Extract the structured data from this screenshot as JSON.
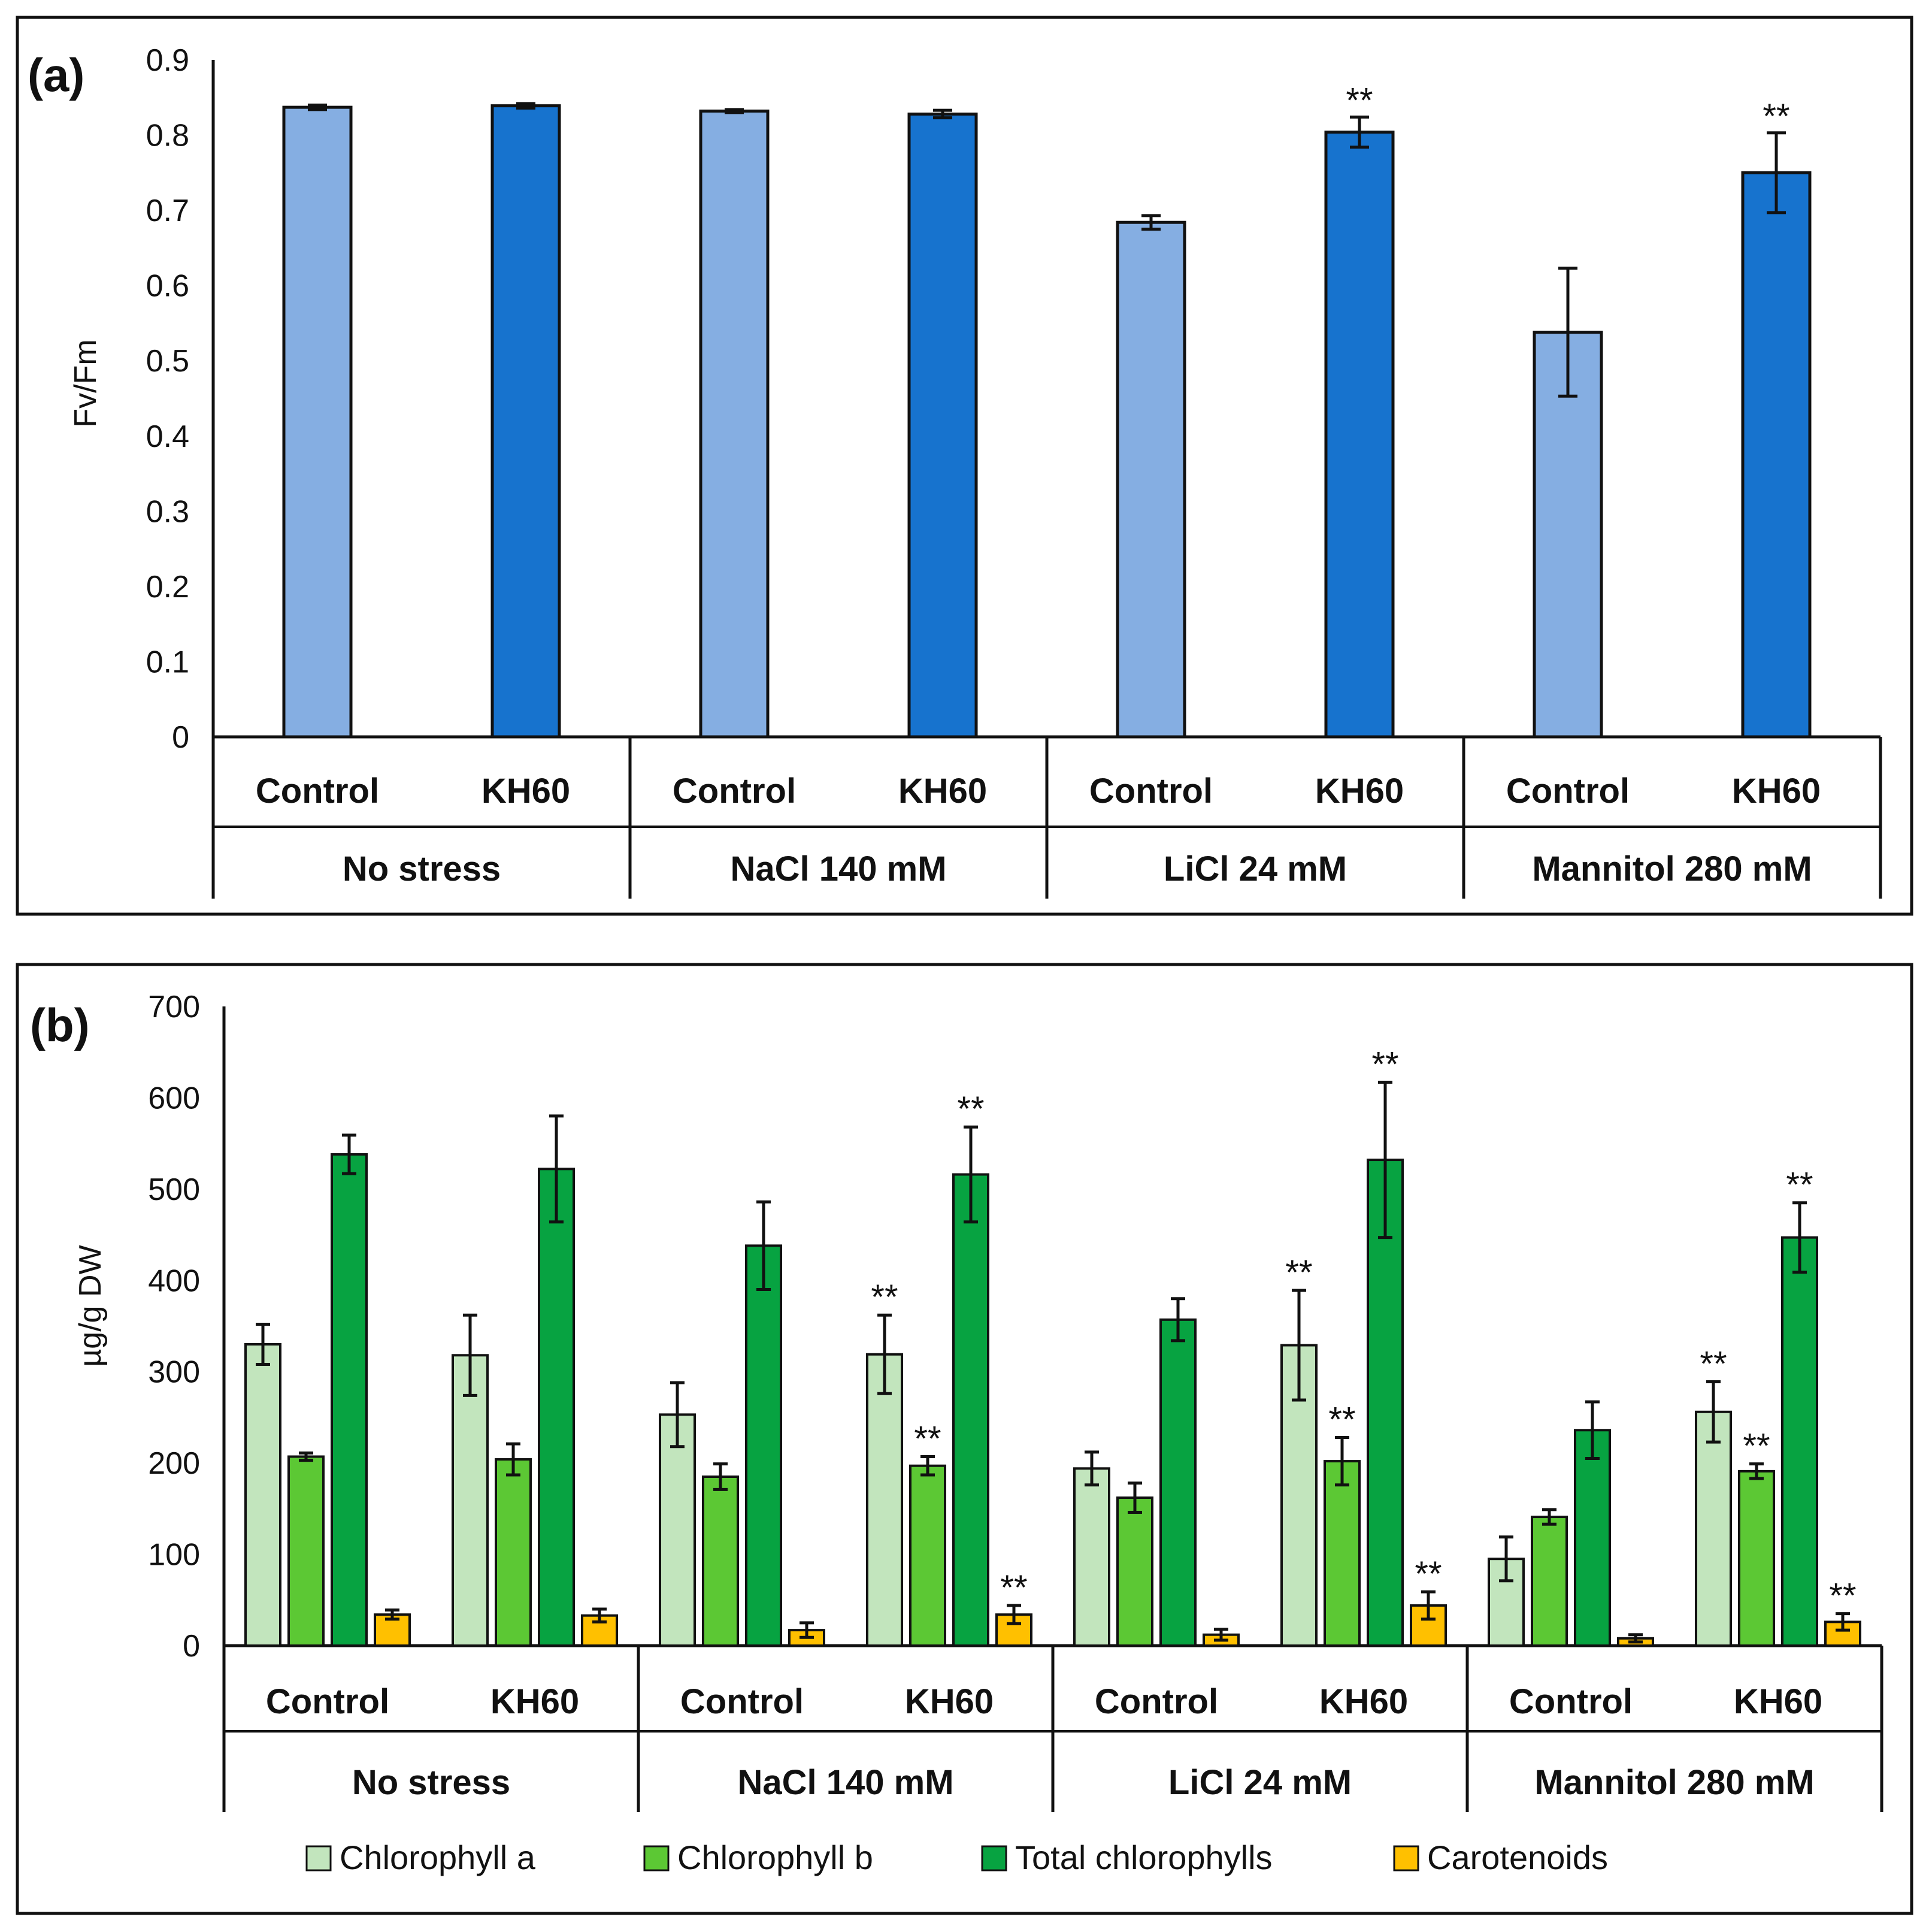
{
  "chart_data": [
    {
      "panel_label": "(a)",
      "type": "bar",
      "ylabel": "Fv/Fm",
      "ylim": [
        0,
        0.9
      ],
      "yticks": [
        "0",
        "0.1",
        "0.2",
        "0.3",
        "0.4",
        "0.5",
        "0.6",
        "0.7",
        "0.8",
        "0.9"
      ],
      "groups": [
        "No stress",
        "NaCl 140 mM",
        "LiCl 24 mM",
        "Mannitol 280 mM"
      ],
      "subcategories": [
        "Control",
        "KH60"
      ],
      "colors": {
        "Control": "#85AEE2",
        "KH60": "#1773CE"
      },
      "values": [
        [
          0.837,
          0.839
        ],
        [
          0.832,
          0.828
        ],
        [
          0.684,
          0.804
        ],
        [
          0.538,
          0.75
        ]
      ],
      "errors": [
        [
          0.003,
          0.003
        ],
        [
          0.002,
          0.005
        ],
        [
          0.009,
          0.02
        ],
        [
          0.085,
          0.053
        ]
      ],
      "significance": [
        [
          "",
          ""
        ],
        [
          "",
          ""
        ],
        [
          "",
          "**"
        ],
        [
          "",
          "**"
        ]
      ]
    },
    {
      "panel_label": "(b)",
      "type": "bar",
      "ylabel": "µg/g DW",
      "ylim": [
        0,
        700
      ],
      "yticks": [
        "0",
        "100",
        "200",
        "300",
        "400",
        "500",
        "600",
        "700"
      ],
      "groups": [
        "No stress",
        "NaCl 140 mM",
        "LiCl 24 mM",
        "Mannitol 280 mM"
      ],
      "subcategories": [
        "Control",
        "KH60"
      ],
      "series": [
        {
          "name": "Chlorophyll  a",
          "color": "#C2E5BD",
          "values": [
            [
              330,
              318
            ],
            [
              253,
              319
            ],
            [
              194,
              329
            ],
            [
              95,
              256
            ]
          ],
          "errors": [
            [
              22,
              44
            ],
            [
              35,
              43
            ],
            [
              18,
              60
            ],
            [
              24,
              33
            ]
          ],
          "significance": [
            [
              "",
              ""
            ],
            [
              "",
              "**"
            ],
            [
              "",
              "**"
            ],
            [
              "",
              "**"
            ]
          ]
        },
        {
          "name": "Chlorophyll  b",
          "color": "#5CC834",
          "values": [
            [
              207,
              204
            ],
            [
              185,
              197
            ],
            [
              162,
              202
            ],
            [
              141,
              191
            ]
          ],
          "errors": [
            [
              4,
              17
            ],
            [
              14,
              10
            ],
            [
              16,
              26
            ],
            [
              8,
              8
            ]
          ],
          "significance": [
            [
              "",
              ""
            ],
            [
              "",
              "**"
            ],
            [
              "",
              "**"
            ],
            [
              "",
              "**"
            ]
          ]
        },
        {
          "name": "Total chlorophylls",
          "color": "#07A341",
          "values": [
            [
              538,
              522
            ],
            [
              438,
              516
            ],
            [
              357,
              532
            ],
            [
              236,
              447
            ]
          ],
          "errors": [
            [
              21,
              58
            ],
            [
              48,
              52
            ],
            [
              23,
              85
            ],
            [
              31,
              38
            ]
          ],
          "significance": [
            [
              "",
              ""
            ],
            [
              "",
              "**"
            ],
            [
              "",
              "**"
            ],
            [
              "",
              "**"
            ]
          ]
        },
        {
          "name": "Carotenoids",
          "color": "#FFC000",
          "values": [
            [
              34,
              33
            ],
            [
              17,
              34
            ],
            [
              12,
              44
            ],
            [
              8,
              26
            ]
          ],
          "errors": [
            [
              5,
              7
            ],
            [
              8,
              10
            ],
            [
              6,
              15
            ],
            [
              4,
              9
            ]
          ],
          "significance": [
            [
              "",
              ""
            ],
            [
              "",
              "**"
            ],
            [
              "",
              "**"
            ],
            [
              "",
              "**"
            ]
          ]
        }
      ]
    }
  ]
}
